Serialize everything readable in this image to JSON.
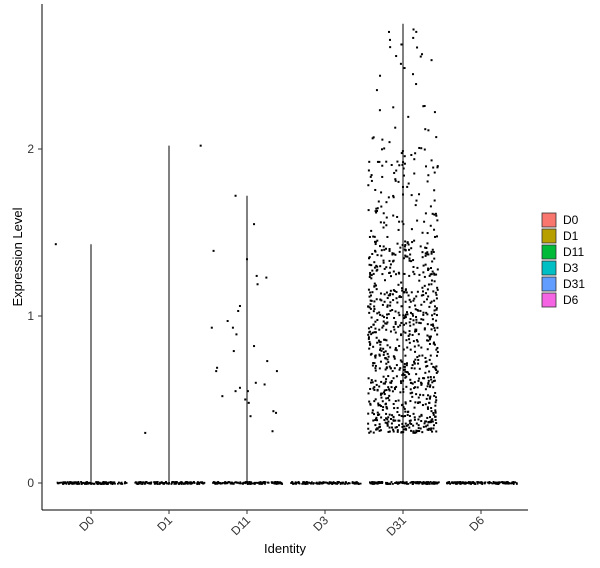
{
  "chart_data": {
    "type": "violin",
    "xlabel": "Identity",
    "ylabel": "Expression Level",
    "categories": [
      "D0",
      "D1",
      "D11",
      "D3",
      "D31",
      "D6"
    ],
    "ylim": [
      -0.15,
      2.88
    ],
    "yticks": [
      0,
      1,
      2
    ],
    "grid": false,
    "legend_position": "right",
    "legend": [
      {
        "name": "D0",
        "color": "#F8766D"
      },
      {
        "name": "D1",
        "color": "#B79F00"
      },
      {
        "name": "D11",
        "color": "#00BA38"
      },
      {
        "name": "D3",
        "color": "#00BFC4"
      },
      {
        "name": "D31",
        "color": "#619CFF"
      },
      {
        "name": "D6",
        "color": "#F564E3"
      }
    ],
    "series": [
      {
        "name": "D0",
        "max": 1.43,
        "nonzero_points": [
          {
            "x_offset": -0.4,
            "y": 1.43
          }
        ]
      },
      {
        "name": "D1",
        "max": 2.02,
        "nonzero_points": [
          {
            "x_offset": -0.27,
            "y": 0.3
          },
          {
            "x_offset": 0.36,
            "y": 2.02
          }
        ]
      },
      {
        "name": "D11",
        "max": 1.72,
        "nonzero_points": [
          {
            "x_offset": -0.38,
            "y": 1.39
          },
          {
            "x_offset": -0.13,
            "y": 1.72
          },
          {
            "x_offset": 0.08,
            "y": 1.55
          },
          {
            "x_offset": 0.0,
            "y": 1.34
          },
          {
            "x_offset": 0.11,
            "y": 1.24
          },
          {
            "x_offset": 0.22,
            "y": 1.23
          },
          {
            "x_offset": 0.12,
            "y": 1.19
          },
          {
            "x_offset": -0.08,
            "y": 1.06
          },
          {
            "x_offset": -0.1,
            "y": 1.03
          },
          {
            "x_offset": -0.22,
            "y": 0.97
          },
          {
            "x_offset": -0.4,
            "y": 0.93
          },
          {
            "x_offset": -0.16,
            "y": 0.93
          },
          {
            "x_offset": -0.12,
            "y": 0.89
          },
          {
            "x_offset": 0.08,
            "y": 0.82
          },
          {
            "x_offset": -0.15,
            "y": 0.79
          },
          {
            "x_offset": 0.23,
            "y": 0.73
          },
          {
            "x_offset": -0.34,
            "y": 0.69
          },
          {
            "x_offset": -0.35,
            "y": 0.67
          },
          {
            "x_offset": 0.34,
            "y": 0.67
          },
          {
            "x_offset": 0.1,
            "y": 0.6
          },
          {
            "x_offset": 0.2,
            "y": 0.59
          },
          {
            "x_offset": -0.08,
            "y": 0.57
          },
          {
            "x_offset": -0.13,
            "y": 0.55
          },
          {
            "x_offset": 0.01,
            "y": 0.55
          },
          {
            "x_offset": -0.28,
            "y": 0.52
          },
          {
            "x_offset": -0.02,
            "y": 0.5
          },
          {
            "x_offset": 0.02,
            "y": 0.48
          },
          {
            "x_offset": 0.3,
            "y": 0.43
          },
          {
            "x_offset": 0.33,
            "y": 0.42
          },
          {
            "x_offset": 0.04,
            "y": 0.4
          },
          {
            "x_offset": 0.29,
            "y": 0.31
          }
        ]
      },
      {
        "name": "D3",
        "max": 0,
        "nonzero_points": []
      },
      {
        "name": "D31",
        "max": 2.75,
        "cloud": {
          "count": 900,
          "y_min": 0.3,
          "y_max": 2.75
        }
      },
      {
        "name": "D6",
        "max": 0,
        "nonzero_points": []
      }
    ]
  }
}
